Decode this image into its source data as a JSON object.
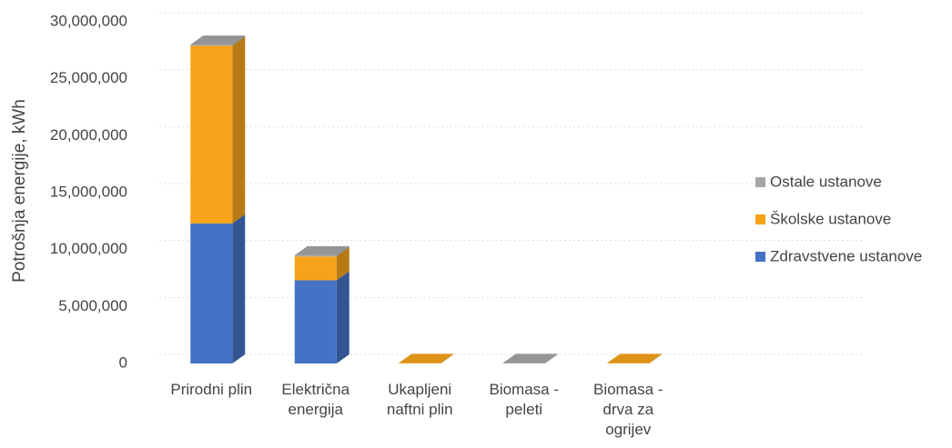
{
  "chart_data": {
    "type": "bar3d_stacked",
    "y_label": "Potrošnja energije, kWh",
    "categories": [
      "Prirodni plin",
      "Električna energija",
      "Ukapljeni naftni plin",
      "Biomasa - peleti",
      "Biomasa - drva za ogrijev"
    ],
    "series": [
      {
        "name": "Zdravstvene ustanove",
        "color": "#4472c4",
        "values": [
          12300000,
          7300000,
          0,
          0,
          0
        ]
      },
      {
        "name": "Školske ustanove",
        "color": "#f5a31a",
        "values": [
          15600000,
          2100000,
          50000,
          0,
          50000
        ]
      },
      {
        "name": "Ostale ustanove",
        "color": "#a5a5a5",
        "values": [
          100000,
          100000,
          0,
          50000,
          0
        ]
      }
    ],
    "ylim": [
      0,
      30000000
    ],
    "yticks": [
      0,
      {
        "value": 5000000,
        "label": "5,000,000"
      },
      {
        "value": 10000000,
        "label": "10,000,000"
      },
      {
        "value": 15000000,
        "label": "15,000,000"
      },
      {
        "value": 20000000,
        "label": "20,000,000"
      },
      {
        "value": 25000000,
        "label": "25,000,000"
      },
      {
        "value": 30000000,
        "label": "30,000,000"
      }
    ],
    "grid": true,
    "legend": "right"
  }
}
